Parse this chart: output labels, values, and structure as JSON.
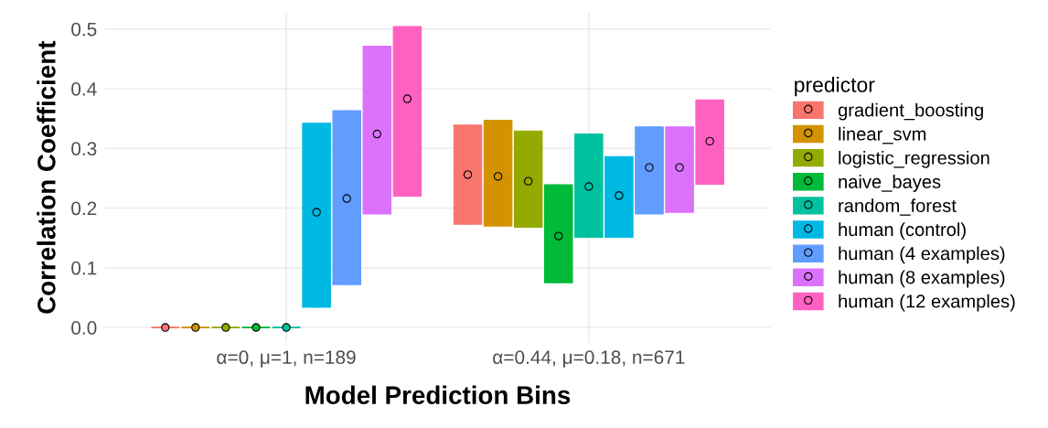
{
  "chart_data": {
    "type": "box",
    "xlabel": "Model Prediction Bins",
    "ylabel": "Correlation Coefficient",
    "legend_title": "predictor",
    "categories": [
      "α=0, μ=1, n=189",
      "α=0.44, μ=0.18, n=671"
    ],
    "ylim": [
      -0.025,
      0.527
    ],
    "yticks": [
      {
        "value": 0,
        "label": "0.0"
      },
      0.1,
      0.2,
      0.3,
      0.4,
      0.5
    ],
    "grid": true,
    "legend": "right",
    "marker": "circle",
    "series": [
      {
        "name": "gradient_boosting",
        "color": "#f8766d",
        "boxes": [
          {
            "low": 0,
            "q1": 0,
            "median": 0,
            "q3": 0,
            "high": 0,
            "mean": 0
          },
          {
            "low": 0.173,
            "q1": 0.173,
            "median": 0.256,
            "q3": 0.339,
            "high": 0.339,
            "mean": 0.256
          }
        ]
      },
      {
        "name": "linear_svm",
        "color": "#d39200",
        "boxes": [
          {
            "low": 0,
            "q1": 0,
            "median": 0,
            "q3": 0,
            "high": 0,
            "mean": 0
          },
          {
            "low": 0.17,
            "q1": 0.17,
            "median": 0.253,
            "q3": 0.347,
            "high": 0.347,
            "mean": 0.253
          }
        ]
      },
      {
        "name": "logistic_regression",
        "color": "#93aa00",
        "boxes": [
          {
            "low": 0,
            "q1": 0,
            "median": 0,
            "q3": 0,
            "high": 0,
            "mean": 0
          },
          {
            "low": 0.168,
            "q1": 0.168,
            "median": 0.245,
            "q3": 0.329,
            "high": 0.329,
            "mean": 0.245
          }
        ]
      },
      {
        "name": "naive_bayes",
        "color": "#00ba38",
        "boxes": [
          {
            "low": 0,
            "q1": 0,
            "median": 0,
            "q3": 0,
            "high": 0,
            "mean": 0
          },
          {
            "low": 0.075,
            "q1": 0.075,
            "median": 0.153,
            "q3": 0.239,
            "high": 0.239,
            "mean": 0.153
          }
        ]
      },
      {
        "name": "random_forest",
        "color": "#00c19f",
        "boxes": [
          {
            "low": 0,
            "q1": 0,
            "median": 0,
            "q3": 0,
            "high": 0,
            "mean": 0
          },
          {
            "low": 0.151,
            "q1": 0.151,
            "median": 0.236,
            "q3": 0.324,
            "high": 0.324,
            "mean": 0.236
          }
        ]
      },
      {
        "name": "human (control)",
        "color": "#00b9e3",
        "boxes": [
          {
            "low": 0.034,
            "q1": 0.034,
            "median": 0.193,
            "q3": 0.342,
            "high": 0.342,
            "mean": 0.193
          },
          {
            "low": 0.151,
            "q1": 0.151,
            "median": 0.221,
            "q3": 0.286,
            "high": 0.286,
            "mean": 0.221
          }
        ]
      },
      {
        "name": "human (4 examples)",
        "color": "#619cff",
        "boxes": [
          {
            "low": 0.072,
            "q1": 0.072,
            "median": 0.216,
            "q3": 0.363,
            "high": 0.363,
            "mean": 0.216
          },
          {
            "low": 0.19,
            "q1": 0.19,
            "median": 0.268,
            "q3": 0.336,
            "high": 0.336,
            "mean": 0.268
          }
        ]
      },
      {
        "name": "human (8 examples)",
        "color": "#db72fb",
        "boxes": [
          {
            "low": 0.19,
            "q1": 0.19,
            "median": 0.324,
            "q3": 0.471,
            "high": 0.471,
            "mean": 0.324
          },
          {
            "low": 0.193,
            "q1": 0.193,
            "median": 0.268,
            "q3": 0.336,
            "high": 0.336,
            "mean": 0.268
          }
        ]
      },
      {
        "name": "human (12 examples)",
        "color": "#ff61c3",
        "boxes": [
          {
            "low": 0.22,
            "q1": 0.22,
            "median": 0.383,
            "q3": 0.504,
            "high": 0.504,
            "mean": 0.383
          },
          {
            "low": 0.24,
            "q1": 0.24,
            "median": 0.312,
            "q3": 0.381,
            "high": 0.381,
            "mean": 0.312
          }
        ]
      }
    ]
  }
}
